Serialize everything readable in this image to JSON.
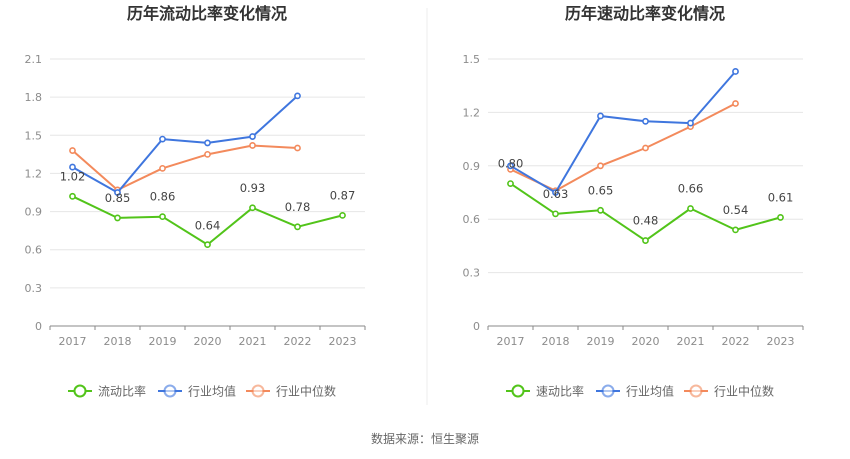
{
  "chart_data": [
    {
      "type": "line",
      "title": "历年流动比率变化情况",
      "categories": [
        "2017",
        "2018",
        "2019",
        "2020",
        "2021",
        "2022",
        "2023"
      ],
      "yticks": [
        "0",
        "0.3",
        "0.6",
        "0.9",
        "1.2",
        "1.5",
        "1.8",
        "2.1"
      ],
      "ylim": [
        0,
        2.1
      ],
      "grid": true,
      "legend_position": "bottom",
      "series": [
        {
          "name": "流动比率",
          "color": "#52c41a",
          "labeled": true,
          "values": [
            1.02,
            0.85,
            0.86,
            0.64,
            0.93,
            0.78,
            0.87
          ],
          "labels": [
            "1.02",
            "0.85",
            "0.86",
            "0.64",
            "0.93",
            "0.78",
            "0.87"
          ]
        },
        {
          "name": "行业均值",
          "color": "#3f76de",
          "labeled": false,
          "values": [
            1.25,
            1.05,
            1.47,
            1.44,
            1.49,
            1.81,
            null
          ]
        },
        {
          "name": "行业中位数",
          "color": "#f38a5c",
          "labeled": false,
          "values": [
            1.38,
            1.07,
            1.24,
            1.35,
            1.42,
            1.4,
            null
          ]
        }
      ]
    },
    {
      "type": "line",
      "title": "历年速动比率变化情况",
      "categories": [
        "2017",
        "2018",
        "2019",
        "2020",
        "2021",
        "2022",
        "2023"
      ],
      "yticks": [
        "0",
        "0.3",
        "0.6",
        "0.9",
        "1.2",
        "1.5"
      ],
      "ylim": [
        0,
        1.5
      ],
      "grid": true,
      "legend_position": "bottom",
      "series": [
        {
          "name": "速动比率",
          "color": "#52c41a",
          "labeled": true,
          "values": [
            0.8,
            0.63,
            0.65,
            0.48,
            0.66,
            0.54,
            0.61
          ],
          "labels": [
            "0.80",
            "0.63",
            "0.65",
            "0.48",
            "0.66",
            "0.54",
            "0.61"
          ]
        },
        {
          "name": "行业均值",
          "color": "#3f76de",
          "labeled": false,
          "values": [
            0.9,
            0.75,
            1.18,
            1.15,
            1.14,
            1.43,
            null
          ]
        },
        {
          "name": "行业中位数",
          "color": "#f38a5c",
          "labeled": false,
          "values": [
            0.88,
            0.76,
            0.9,
            1.0,
            1.12,
            1.25,
            null
          ]
        }
      ]
    }
  ],
  "source_text": "数据来源：恒生聚源"
}
